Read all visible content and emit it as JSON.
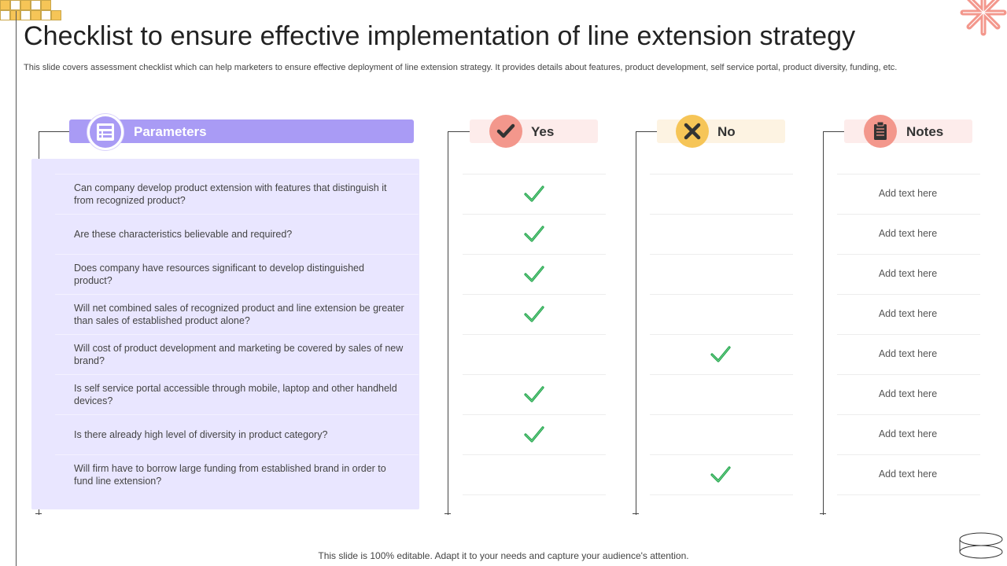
{
  "title": "Checklist to ensure effective implementation of line extension strategy",
  "subtitle": "This slide covers assessment checklist which can help marketers to ensure effective deployment of line extension strategy. It provides details about features, product development, self service portal, product diversity, funding, etc.",
  "columns": {
    "parameters": "Parameters",
    "yes": "Yes",
    "no": "No",
    "notes": "Notes"
  },
  "colors": {
    "parameters_header": "#a99bf5",
    "parameters_panel": "#e9e6ff",
    "yes_header": "#fdeceb",
    "yes_icon": "#f3978c",
    "no_header": "#fdf3e2",
    "no_icon": "#f6c557",
    "notes_header": "#fdeceb",
    "notes_icon": "#f3978c",
    "check": "#22a34a"
  },
  "rows": [
    {
      "parameter": "Can company develop product extension with features that distinguish it from recognized product?",
      "answer": "yes",
      "note": "Add text here"
    },
    {
      "parameter": "Are these characteristics believable and required?",
      "answer": "yes",
      "note": "Add text here"
    },
    {
      "parameter": "Does company have resources significant to develop distinguished product?",
      "answer": "yes",
      "note": "Add text here"
    },
    {
      "parameter": "Will net combined sales of recognized product and line extension be greater than sales of established product alone?",
      "answer": "yes",
      "note": "Add text here"
    },
    {
      "parameter": "Will cost of product development and marketing be covered by sales of new brand?",
      "answer": "no",
      "note": "Add text here"
    },
    {
      "parameter": "Is self service portal accessible through mobile, laptop and other handheld devices?",
      "answer": "yes",
      "note": "Add text here"
    },
    {
      "parameter": "Is there already high level of diversity in product category?",
      "answer": "yes",
      "note": "Add text here"
    },
    {
      "parameter": "Will firm have to borrow large funding from established brand in order to fund line extension?",
      "answer": "no",
      "note": "Add text here"
    }
  ],
  "icons": {
    "parameters": "checklist-icon",
    "yes": "checkmark-icon",
    "no": "x-mark-icon",
    "notes": "clipboard-icon"
  },
  "footer": "This slide is 100% editable. Adapt it to your needs and capture your audience's attention."
}
